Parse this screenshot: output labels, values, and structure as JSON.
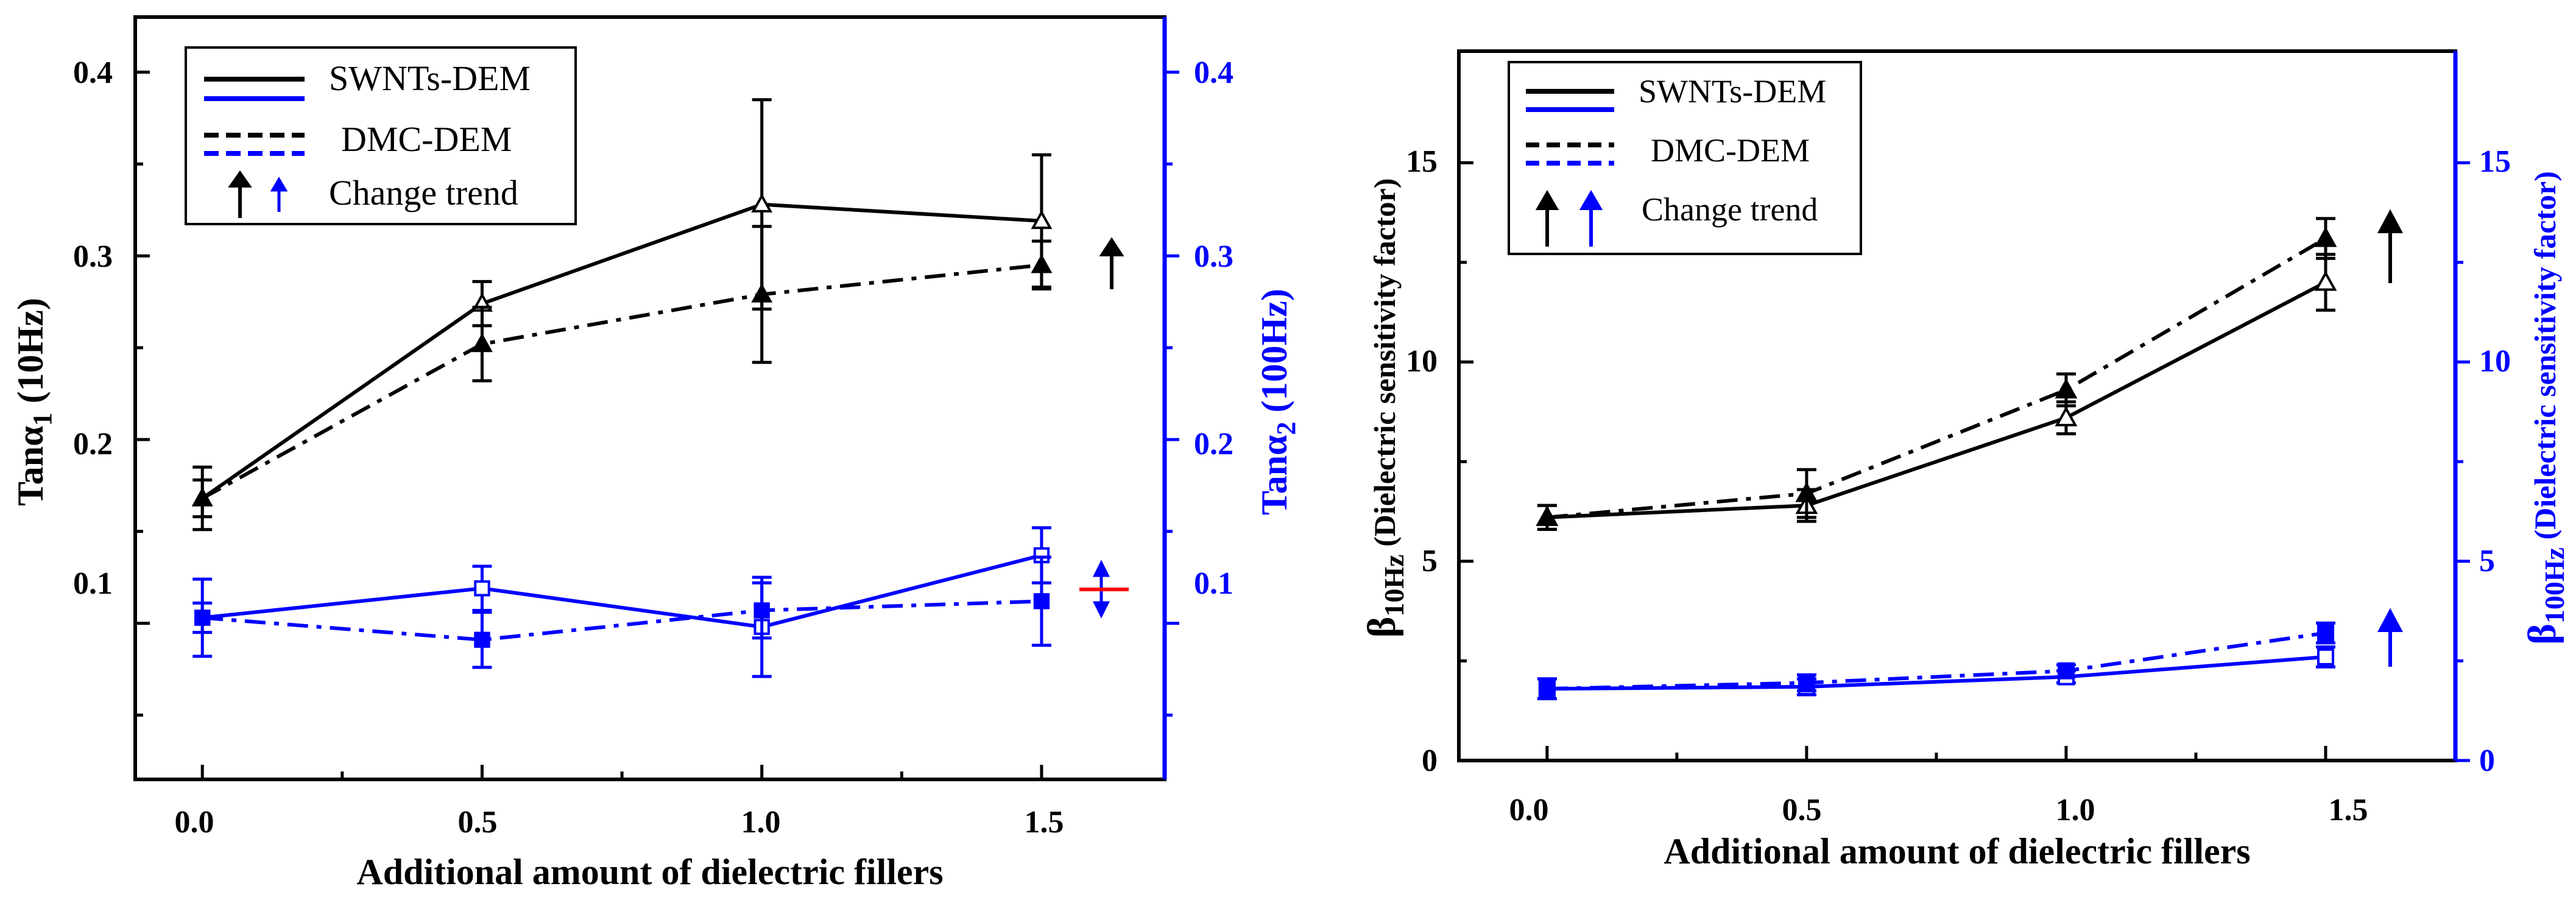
{
  "chart_data": [
    {
      "type": "line",
      "xlabel": "Additional amount of dielectric fillers",
      "ylabel_left": {
        "main": "Tanα",
        "sub": "1",
        "suffix": " (10Hz)"
      },
      "ylabel_right": {
        "main": "Tanα",
        "sub": "2",
        "suffix": " (100Hz)"
      },
      "x_ticks": [
        "0.0",
        "0.5",
        "1.0",
        "1.5"
      ],
      "y_left_ticks": [
        "0.1",
        "0.2",
        "0.3",
        "0.4"
      ],
      "y_right_ticks": [
        "0.1",
        "0.2",
        "0.3",
        "0.4"
      ],
      "xlim": [
        -0.12,
        1.72
      ],
      "ylim": [
        0.015,
        0.43
      ],
      "y_right_lim": [
        0.015,
        0.43
      ],
      "x": [
        0.0,
        0.5,
        1.0,
        1.5
      ],
      "legend": {
        "position": "top-left",
        "entries": [
          "SWNTs-DEM",
          "DMC-DEM",
          "Change trend"
        ]
      },
      "series": [
        {
          "name": "SWNTs-DEM (Tanα1, 10Hz)",
          "axis": "left",
          "color": "#000000",
          "dash": "solid",
          "marker": "triangle-open",
          "values": [
            0.168,
            0.274,
            0.328,
            0.319
          ],
          "errors": [
            0.017,
            0.012,
            0.057,
            0.036
          ]
        },
        {
          "name": "DMC-DEM (Tanα1, 10Hz)",
          "axis": "left",
          "color": "#000000",
          "dash": "dashdot",
          "marker": "triangle-filled",
          "values": [
            0.168,
            0.252,
            0.279,
            0.295
          ],
          "errors": [
            0.01,
            0.02,
            0.037,
            0.013
          ]
        },
        {
          "name": "SWNTs-DEM (Tanα2, 100Hz)",
          "axis": "right",
          "color": "#0000ff",
          "dash": "solid",
          "marker": "square-open",
          "values": [
            0.103,
            0.119,
            0.098,
            0.137
          ],
          "errors": [
            0.021,
            0.012,
            0.027,
            0.015
          ]
        },
        {
          "name": "DMC-DEM (Tanα2, 100Hz)",
          "axis": "right",
          "color": "#0000ff",
          "dash": "dashdot",
          "marker": "square-filled",
          "values": [
            0.103,
            0.091,
            0.107,
            0.112
          ],
          "errors": [
            0.008,
            0.015,
            0.015,
            0.024
          ]
        }
      ],
      "trend_markers": [
        {
          "type": "arrow-up",
          "color": "#000000",
          "value": 0.28
        },
        {
          "type": "arrow-updown",
          "color": "#0000ff",
          "value": 0.12
        },
        {
          "type": "flat-line",
          "color": "#ff0000",
          "value": 0.122
        }
      ]
    },
    {
      "type": "line",
      "xlabel": "Additional amount of dielectric fillers",
      "ylabel_left": {
        "main": "β",
        "sub": "10Hz",
        "suffix": " (Dielectric sensitivity factor)"
      },
      "ylabel_right": {
        "main": "β",
        "sub": "100Hz",
        "suffix": "  (Dielectric sensitivity factor)"
      },
      "x_ticks": [
        "0.0",
        "0.5",
        "1.0",
        "1.5"
      ],
      "y_left_ticks": [
        "0",
        "5",
        "10",
        "15"
      ],
      "y_right_ticks": [
        "0",
        "5",
        "10",
        "15"
      ],
      "xlim": [
        -0.17,
        1.75
      ],
      "ylim": [
        0,
        17.8
      ],
      "y_right_lim": [
        0,
        17.8
      ],
      "x": [
        0.0,
        0.5,
        1.0,
        1.5
      ],
      "legend": {
        "position": "top-left",
        "entries": [
          "SWNTs-DEM",
          "DMC-DEM",
          "Change trend"
        ]
      },
      "series": [
        {
          "name": "SWNTs-DEM (β10Hz)",
          "axis": "left",
          "color": "#000000",
          "dash": "solid",
          "marker": "triangle-open",
          "values": [
            6.1,
            6.4,
            8.6,
            12.0
          ],
          "errors": [
            0.3,
            0.4,
            0.4,
            0.7
          ]
        },
        {
          "name": "DMC-DEM (β10Hz)",
          "axis": "left",
          "color": "#000000",
          "dash": "dashdot",
          "marker": "triangle-filled",
          "values": [
            6.1,
            6.7,
            9.3,
            13.1
          ],
          "errors": [
            0.3,
            0.6,
            0.4,
            0.5
          ]
        },
        {
          "name": "SWNTs-DEM (β100Hz)",
          "axis": "right",
          "color": "#0000ff",
          "dash": "solid",
          "marker": "square-open",
          "values": [
            1.8,
            1.85,
            2.1,
            2.6
          ],
          "errors": [
            0.25,
            0.2,
            0.15,
            0.25
          ]
        },
        {
          "name": "DMC-DEM (β100Hz)",
          "axis": "right",
          "color": "#0000ff",
          "dash": "dashdot",
          "marker": "square-filled",
          "values": [
            1.8,
            1.95,
            2.25,
            3.2
          ],
          "errors": [
            0.25,
            0.2,
            0.15,
            0.25
          ]
        }
      ],
      "trend_markers": [
        {
          "type": "arrow-up",
          "color": "#000000",
          "value": 12.8
        },
        {
          "type": "arrow-up",
          "color": "#0000ff",
          "value": 2.9
        }
      ]
    }
  ]
}
